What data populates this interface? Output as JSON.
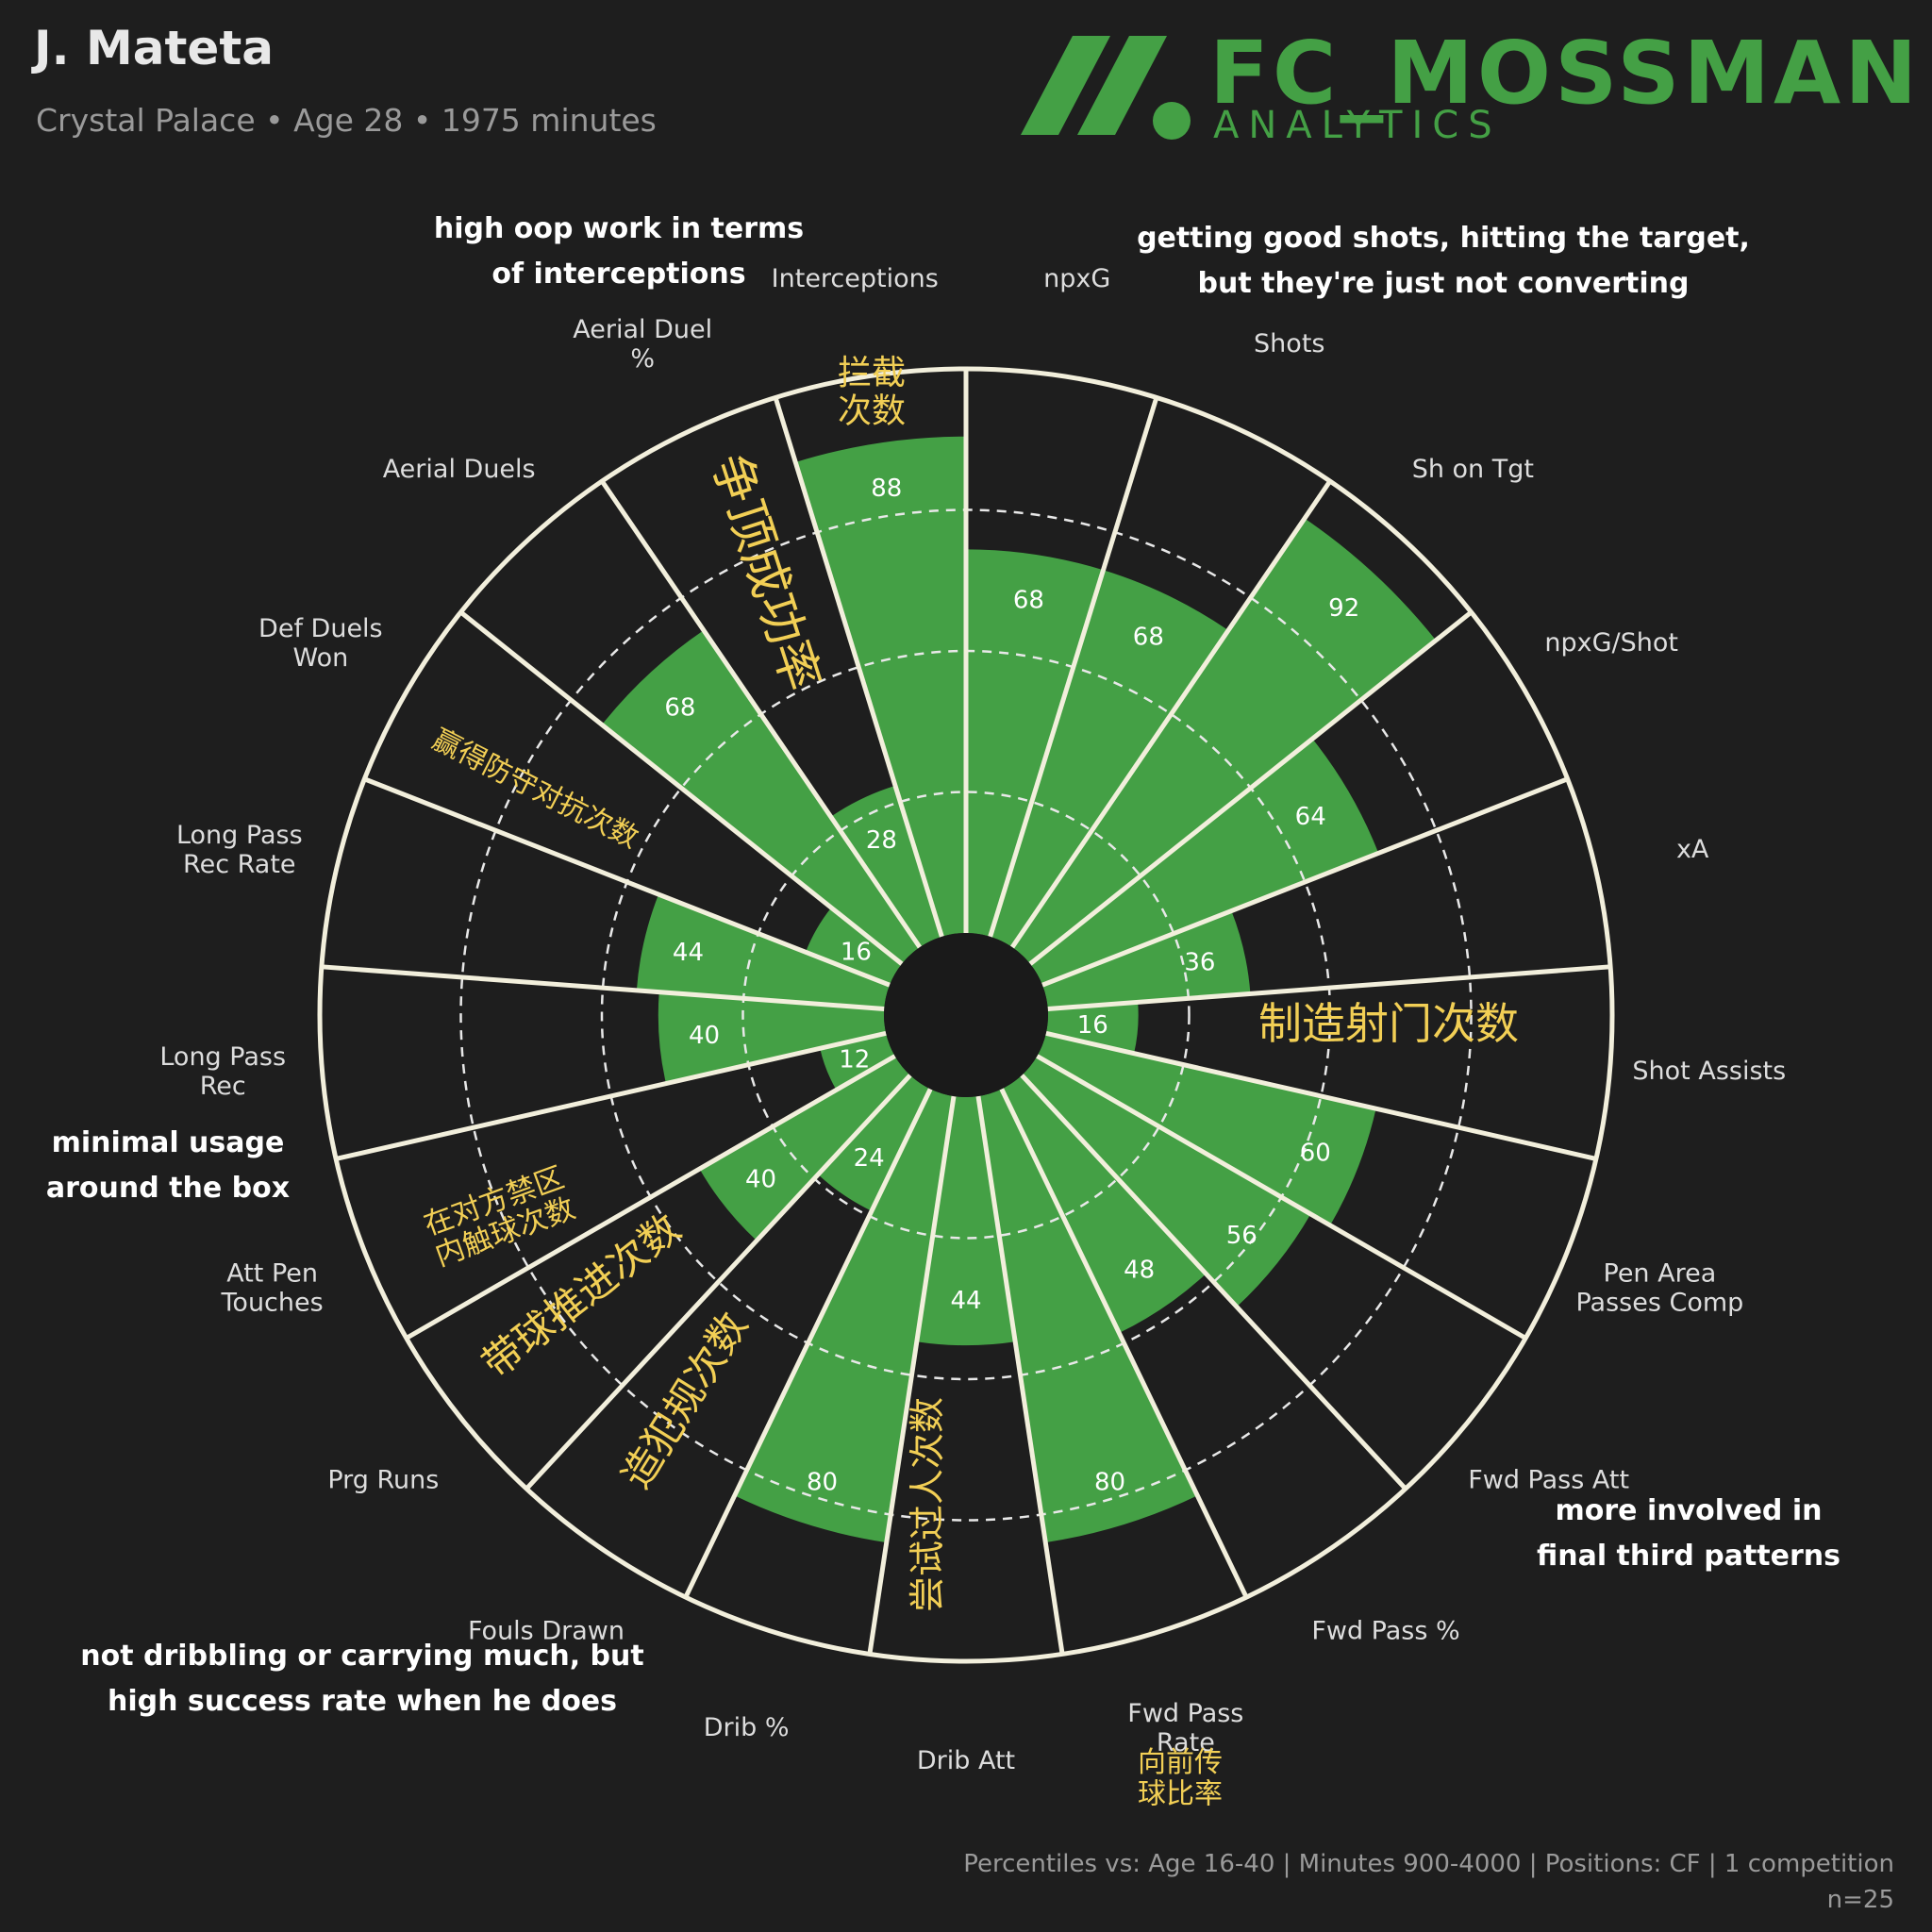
{
  "header": {
    "player": "J. Mateta",
    "subtitle": "Crystal Palace • Age 28 • 1975 minutes"
  },
  "logo": {
    "name": "FC_MOSSMAN",
    "sub": "ANALYTICS"
  },
  "footer": {
    "line1": "Percentiles vs: Age 16-40 | Minutes 900-4000 | Positions: CF | 1 competition",
    "line2": "n=25"
  },
  "colors": {
    "background": "#1e1e1e",
    "bar": "#44a045",
    "spoke": "#f2efdc",
    "annotation_cn": "#f2cf55",
    "annotation_en": "#ffffff",
    "label": "#dddddd"
  },
  "chart_data": {
    "type": "bar",
    "subtype": "radial-percentile",
    "categories": [
      "npxG",
      "Shots",
      "Sh on Tgt",
      "npxG/Shot",
      "xA",
      "Shot Assists",
      "Pen Area Passes Comp",
      "Fwd Pass Att",
      "Fwd Pass %",
      "Fwd Pass Rate",
      "Drib Att",
      "Drib %",
      "Fouls Drawn",
      "Prg Runs",
      "Att Pen Touches",
      "Long Pass Rec",
      "Long Pass Rec Rate",
      "Def Duels Won",
      "Aerial Duels",
      "Aerial Duel %",
      "Interceptions"
    ],
    "values": [
      68,
      68,
      92,
      64,
      36,
      16,
      60,
      56,
      48,
      80,
      44,
      80,
      24,
      40,
      12,
      40,
      44,
      16,
      68,
      28,
      88
    ],
    "ylim": [
      0,
      100
    ]
  },
  "annotations": {
    "cn": [
      {
        "text": "拦截次数",
        "rotation": 0
      },
      {
        "text": "争顶成功率",
        "rotation": 72
      },
      {
        "text": "赢得防守对抗次数",
        "rotation": 27
      },
      {
        "text": "制造射门次数",
        "rotation": 0
      },
      {
        "text": "在对方禁区内触球次数",
        "rotation": -20
      },
      {
        "text": "带球推进次数",
        "rotation": -38
      },
      {
        "text": "造犯规次数",
        "rotation": -58
      },
      {
        "text": "尝试过人次数",
        "rotation": -90
      },
      {
        "text": "向前传球比率",
        "rotation": 0
      }
    ],
    "en": [
      "high oop work in terms of interceptions",
      "getting good shots, hitting the target, but they're just not converting",
      "minimal usage around the box",
      "more involved in final third patterns",
      "not dribbling or carrying much, but high success rate when he does"
    ]
  }
}
